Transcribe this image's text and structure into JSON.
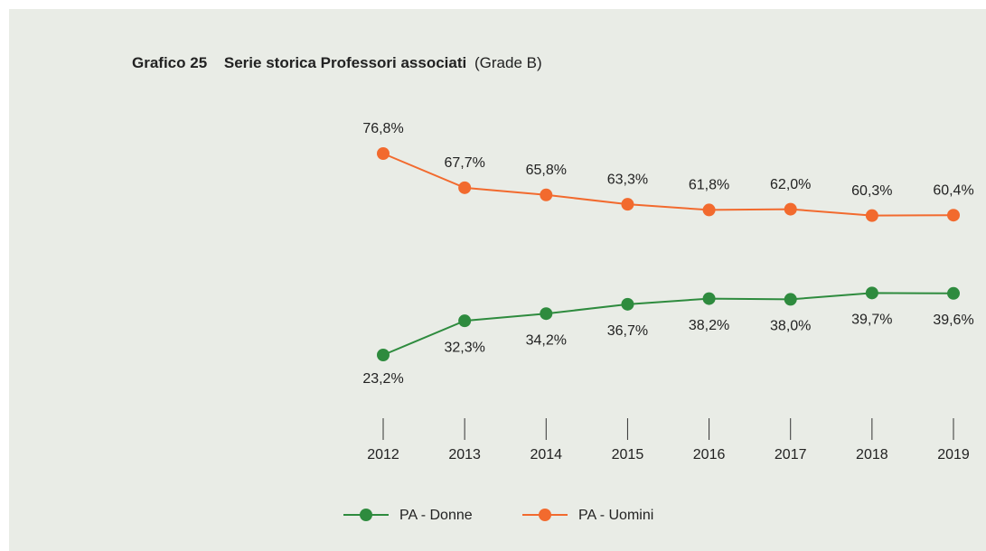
{
  "chart_data": {
    "type": "line",
    "title": {
      "number": "Grafico 25",
      "text": "Serie storica Professori associati",
      "suffix": "(Grade B)"
    },
    "categories": [
      "2012",
      "2013",
      "2014",
      "2015",
      "2016",
      "2017",
      "2018",
      "2019"
    ],
    "series": [
      {
        "name": "PA - Donne",
        "color": "#2e8b3e",
        "values": [
          23.2,
          32.3,
          34.2,
          36.7,
          38.2,
          38.0,
          39.7,
          39.6
        ],
        "value_labels": [
          "23,2%",
          "32,3%",
          "34,2%",
          "36,7%",
          "38,2%",
          "38,0%",
          "39,7%",
          "39,6%"
        ]
      },
      {
        "name": "PA - Uomini",
        "color": "#f26a2e",
        "values": [
          76.8,
          67.7,
          65.8,
          63.3,
          61.8,
          62.0,
          60.3,
          60.4
        ],
        "value_labels": [
          "76,8%",
          "67,7%",
          "65,8%",
          "63,3%",
          "61,8%",
          "62,0%",
          "60,3%",
          "60,4%"
        ]
      }
    ]
  }
}
